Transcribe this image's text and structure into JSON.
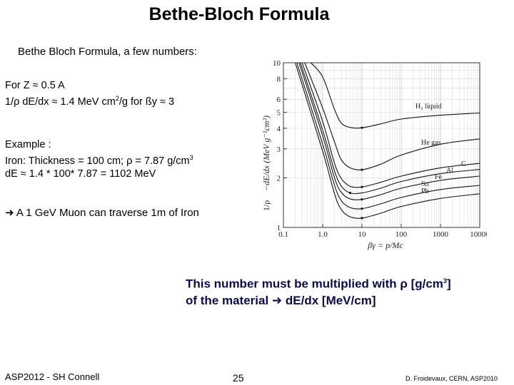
{
  "title": "Bethe-Bloch Formula",
  "subtitle": "Bethe Bloch Formula,  a few numbers:",
  "intro": {
    "line1": "For Z ≈ 0.5 A",
    "line2_pre": "1/ρ dE/dx ≈ 1.4 MeV cm",
    "line2_sup": "2",
    "line2_post": "/g for ßy ≈ 3"
  },
  "example": {
    "heading": "Example :",
    "line1_pre": "Iron: Thickness = 100 cm; ρ = 7.87 g/cm",
    "line1_sup": "3",
    "line2": "dE ≈ 1.4 * 100* 7.87 = 1102 MeV"
  },
  "muon": {
    "arrow": "➜",
    "text": " A 1 GeV Muon can traverse 1m of Iron"
  },
  "note": {
    "line1_pre": "This number must be multiplied with ρ [g/cm",
    "line1_sup": "3",
    "line1_post": "]",
    "line2_pre": "of the material ",
    "arrow": "➜",
    "line2_post": " dE/dx [MeV/cm]"
  },
  "footer": {
    "left": "ASP2012 - SH Connell",
    "page": "25",
    "right": "D. Froidevaux, CERN, ASP2010"
  },
  "chart_data": {
    "type": "line",
    "xlabel": "βγ = p/Mc",
    "ylabel_prefix": "1/ρ",
    "ylabel": "−dE/dx (MeV g⁻¹cm²)",
    "x_scale": "log",
    "y_scale": "log",
    "xlim": [
      0.1,
      10000
    ],
    "ylim": [
      1,
      10
    ],
    "x_ticks": [
      0.1,
      1.0,
      10,
      100,
      1000,
      10000
    ],
    "x_tick_labels": [
      "0.1",
      "1.0",
      "10",
      "100",
      "1000",
      "10000"
    ],
    "y_ticks": [
      1,
      2,
      3,
      4,
      5,
      6,
      8,
      10
    ],
    "y_tick_labels": [
      "1",
      "2",
      "3",
      "4",
      "5",
      "6",
      "8",
      "10"
    ],
    "grid": true,
    "series": [
      {
        "name": "H₂ liquid",
        "points": [
          [
            0.5,
            10
          ],
          [
            1,
            8.2
          ],
          [
            2,
            5.2
          ],
          [
            3,
            4.3
          ],
          [
            5,
            4.05
          ],
          [
            10,
            4.03
          ],
          [
            30,
            4.25
          ],
          [
            100,
            4.55
          ],
          [
            1000,
            4.8
          ],
          [
            10000,
            4.95
          ]
        ]
      },
      {
        "name": "He gas",
        "points": [
          [
            0.35,
            10
          ],
          [
            1,
            5.3
          ],
          [
            2,
            3.3
          ],
          [
            3,
            2.57
          ],
          [
            5,
            2.3
          ],
          [
            10,
            2.24
          ],
          [
            30,
            2.42
          ],
          [
            100,
            2.75
          ],
          [
            1000,
            3.2
          ],
          [
            10000,
            3.45
          ]
        ]
      },
      {
        "name": "C",
        "points": [
          [
            0.3,
            10
          ],
          [
            1,
            4.4
          ],
          [
            2,
            2.45
          ],
          [
            3,
            1.98
          ],
          [
            5,
            1.78
          ],
          [
            10,
            1.76
          ],
          [
            30,
            1.88
          ],
          [
            100,
            2.05
          ],
          [
            1000,
            2.3
          ],
          [
            10000,
            2.45
          ]
        ]
      },
      {
        "name": "Al",
        "points": [
          [
            0.27,
            10
          ],
          [
            1,
            3.9
          ],
          [
            2,
            2.2
          ],
          [
            3,
            1.78
          ],
          [
            5,
            1.62
          ],
          [
            10,
            1.62
          ],
          [
            30,
            1.73
          ],
          [
            100,
            1.9
          ],
          [
            1000,
            2.12
          ],
          [
            10000,
            2.25
          ]
        ]
      },
      {
        "name": "Fe",
        "points": [
          [
            0.25,
            10
          ],
          [
            1,
            3.6
          ],
          [
            2,
            2.0
          ],
          [
            3,
            1.63
          ],
          [
            5,
            1.49
          ],
          [
            10,
            1.48
          ],
          [
            30,
            1.58
          ],
          [
            100,
            1.73
          ],
          [
            1000,
            1.93
          ],
          [
            10000,
            2.05
          ]
        ]
      },
      {
        "name": "Sn",
        "points": [
          [
            0.22,
            10
          ],
          [
            1,
            3.2
          ],
          [
            2,
            1.8
          ],
          [
            3,
            1.45
          ],
          [
            5,
            1.32
          ],
          [
            10,
            1.3
          ],
          [
            30,
            1.39
          ],
          [
            100,
            1.52
          ],
          [
            1000,
            1.7
          ],
          [
            10000,
            1.8
          ]
        ]
      },
      {
        "name": "Pb",
        "points": [
          [
            0.2,
            10
          ],
          [
            1,
            2.9
          ],
          [
            2,
            1.6
          ],
          [
            3,
            1.28
          ],
          [
            5,
            1.16
          ],
          [
            10,
            1.14
          ],
          [
            30,
            1.22
          ],
          [
            100,
            1.34
          ],
          [
            1000,
            1.5
          ],
          [
            10000,
            1.6
          ]
        ]
      }
    ]
  }
}
